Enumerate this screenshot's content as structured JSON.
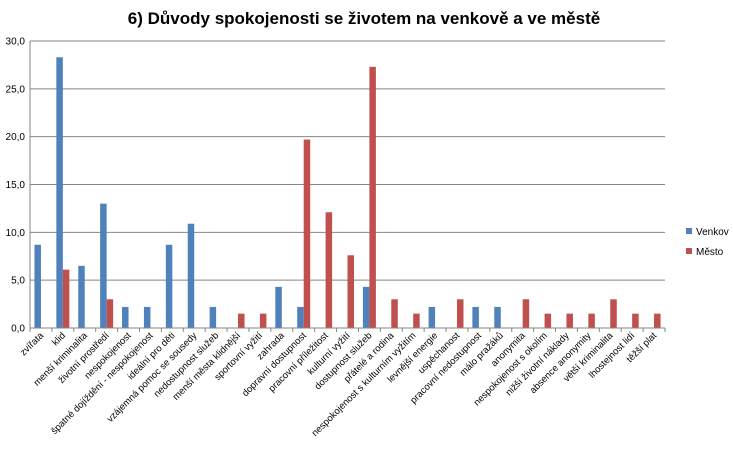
{
  "chart_data": {
    "type": "bar",
    "title": "6) Důvody spokojenosti se životem na venkově a ve městě",
    "xlabel": "",
    "ylabel": "",
    "ylim": [
      0,
      30
    ],
    "yticks": [
      "0,0",
      "5,0",
      "10,0",
      "15,0",
      "20,0",
      "25,0",
      "30,0"
    ],
    "grid": true,
    "legend_position": "right",
    "categories": [
      "zvířata",
      "klid",
      "menší kriminalita",
      "životní prostředí",
      "nespokojenost",
      "špatné dojíždění - nespokojenost",
      "ideální pro děti",
      "vzájemná pomoc se sousedy",
      "nedostupnost služeb",
      "menší města klidnější",
      "sportovní vyžití",
      "zahrada",
      "dopravní dostupnost",
      "pracovní příležitost",
      "kulturní vyžití",
      "dostupnost služeb",
      "přátelé a rodina",
      "nespokojenost s kulturním vyžitím",
      "levnější energie",
      "uspěchanost",
      "pracovní nedostupnost",
      "málo pražáků",
      "anonymita",
      "nespokojenost s okolím",
      "nižší životní náklady",
      "absence anonymity",
      "větší kriminalita",
      "lhostejnost lidí",
      "těžší plat"
    ],
    "series": [
      {
        "name": "Venkov",
        "color": "#4F81BD",
        "values": [
          8.7,
          28.3,
          6.5,
          13.0,
          2.2,
          2.2,
          8.7,
          10.9,
          2.2,
          0,
          0,
          4.3,
          2.2,
          0,
          0,
          4.3,
          0,
          0,
          2.2,
          0,
          2.2,
          2.2,
          0,
          0,
          0,
          0,
          0,
          0,
          0
        ]
      },
      {
        "name": "Město",
        "color": "#C0504D",
        "values": [
          0,
          6.1,
          0,
          3.0,
          0,
          0,
          0,
          0,
          0,
          1.5,
          1.5,
          0,
          19.7,
          12.1,
          7.6,
          27.3,
          3.0,
          1.5,
          0,
          3.0,
          0,
          0,
          3.0,
          1.5,
          1.5,
          1.5,
          3.0,
          1.5,
          1.5
        ]
      }
    ]
  }
}
